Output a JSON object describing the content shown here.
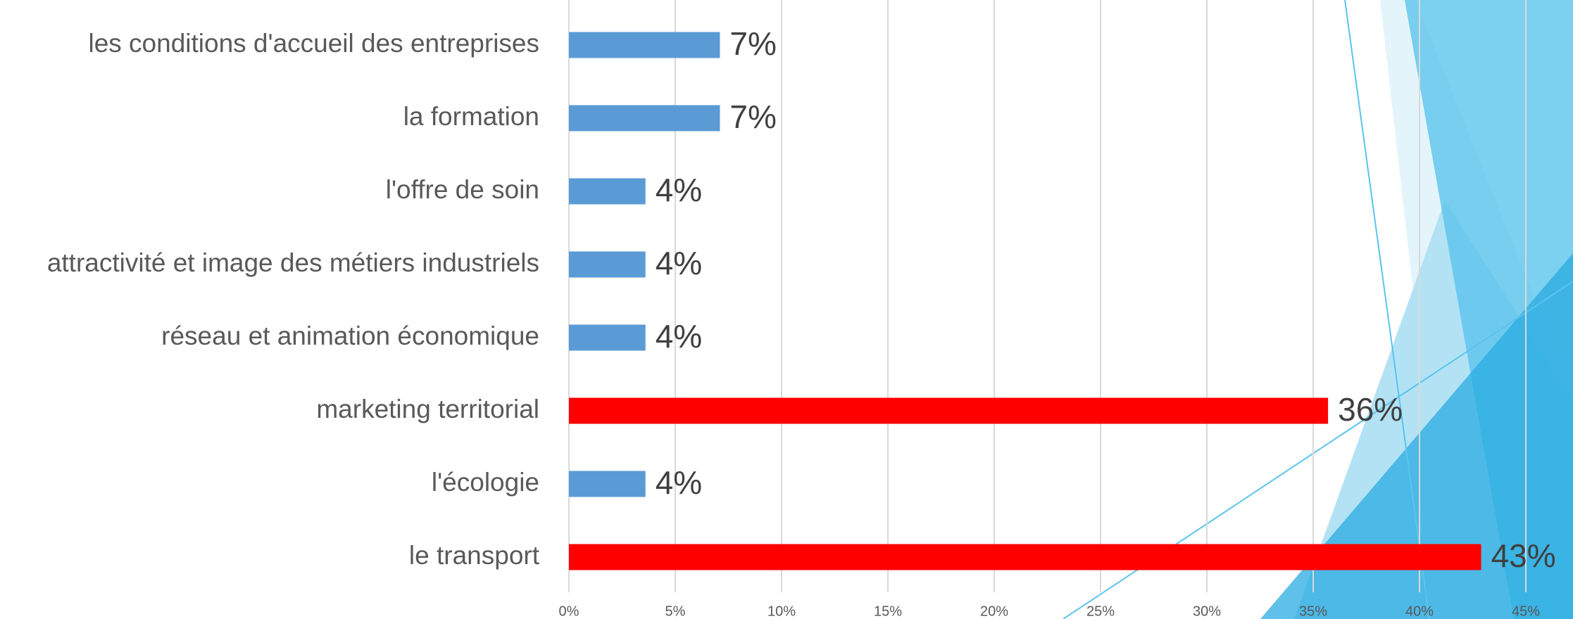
{
  "chart_data": {
    "type": "hbar",
    "categories": [
      "les conditions d'accueil des entreprises",
      "la formation",
      "l'offre de soin",
      "attractivité et image des métiers industriels",
      "réseau et animation économique",
      "marketing territorial",
      "l'écologie",
      "le transport"
    ],
    "values": [
      7.1,
      7.1,
      3.6,
      3.6,
      3.6,
      35.7,
      3.6,
      42.9
    ],
    "value_labels": [
      "7%",
      "7%",
      "4%",
      "4%",
      "4%",
      "36%",
      "4%",
      "43%"
    ],
    "colors": [
      "#5b9bd5",
      "#5b9bd5",
      "#5b9bd5",
      "#5b9bd5",
      "#5b9bd5",
      "#ff0000",
      "#5b9bd5",
      "#ff0000"
    ],
    "xlim": [
      0,
      45
    ],
    "xticks": [
      {
        "value": 0,
        "label": "0%"
      },
      {
        "value": 5,
        "label": "5%"
      },
      {
        "value": 10,
        "label": "10%"
      },
      {
        "value": 15,
        "label": "15%"
      },
      {
        "value": 20,
        "label": "20%"
      },
      {
        "value": 25,
        "label": "25%"
      },
      {
        "value": 30,
        "label": "30%"
      },
      {
        "value": 35,
        "label": "35%"
      },
      {
        "value": 40,
        "label": "40%"
      },
      {
        "value": 45,
        "label": "45%"
      }
    ],
    "grid": true
  }
}
